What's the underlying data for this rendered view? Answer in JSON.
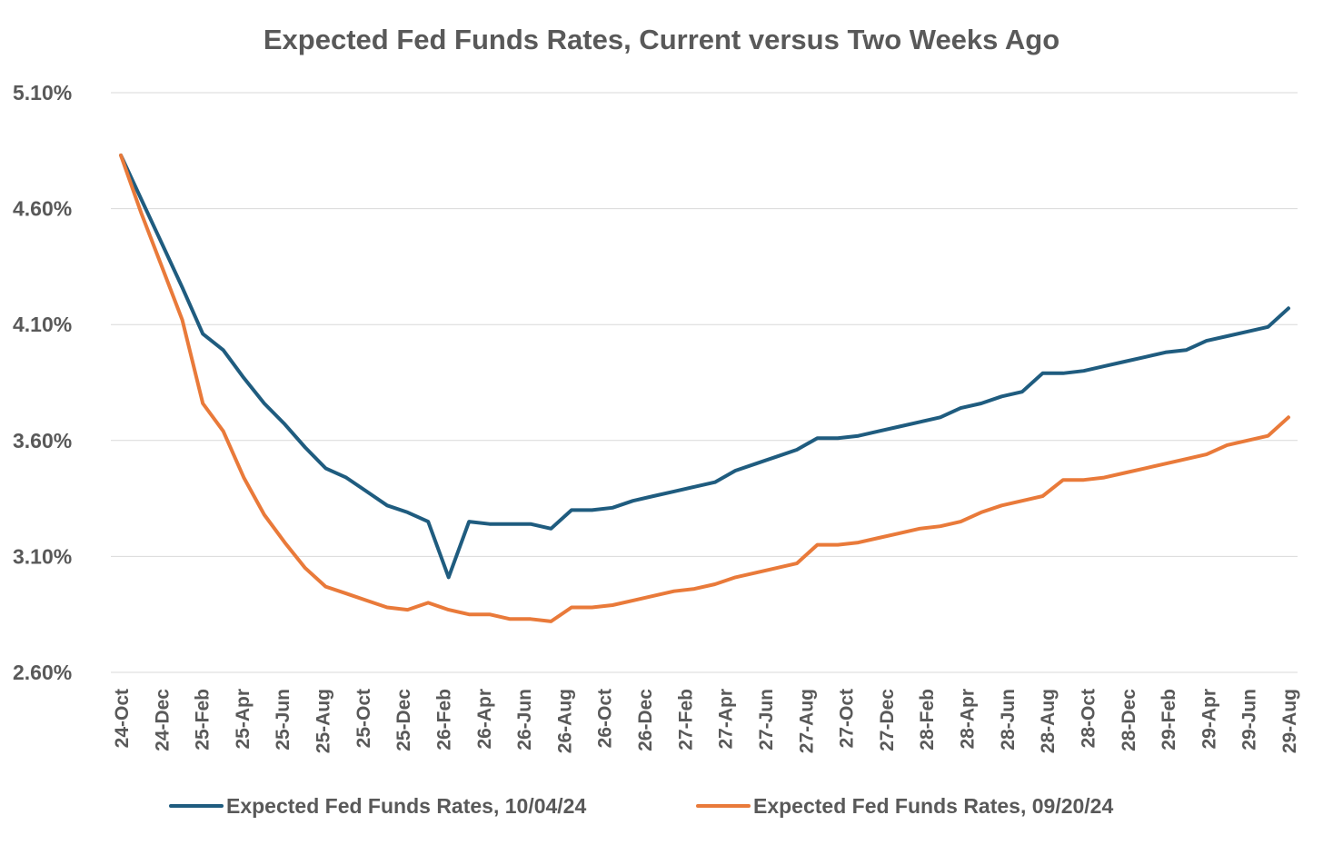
{
  "chart_data": {
    "type": "line",
    "title": "Expected Fed Funds Rates, Current versus Two Weeks Ago",
    "xlabel": "",
    "ylabel": "",
    "ylim": [
      2.6,
      5.1
    ],
    "y_ticks": [
      "2.60%",
      "3.10%",
      "3.60%",
      "4.10%",
      "4.60%",
      "5.10%"
    ],
    "y_tick_values": [
      2.6,
      3.1,
      3.6,
      4.1,
      4.6,
      5.1
    ],
    "x_tick_labels": [
      "24-Oct",
      "24-Dec",
      "25-Feb",
      "25-Apr",
      "25-Jun",
      "25-Aug",
      "25-Oct",
      "25-Dec",
      "26-Feb",
      "26-Apr",
      "26-Jun",
      "26-Aug",
      "26-Oct",
      "26-Dec",
      "27-Feb",
      "27-Apr",
      "27-Jun",
      "27-Aug",
      "27-Oct",
      "27-Dec",
      "28-Feb",
      "28-Apr",
      "28-Jun",
      "28-Aug",
      "28-Oct",
      "28-Dec",
      "29-Feb",
      "29-Apr",
      "29-Jun",
      "29-Aug"
    ],
    "grid": true,
    "legend_position": "bottom",
    "series": [
      {
        "name": "Expected Fed Funds Rates, 10/04/24",
        "color": "#1F5C7F",
        "values": [
          4.83,
          4.64,
          4.45,
          4.26,
          4.06,
          3.99,
          3.87,
          3.76,
          3.67,
          3.57,
          3.48,
          3.44,
          3.38,
          3.32,
          3.29,
          3.25,
          3.01,
          3.25,
          3.24,
          3.24,
          3.24,
          3.22,
          3.3,
          3.3,
          3.31,
          3.34,
          3.36,
          3.38,
          3.4,
          3.42,
          3.47,
          3.5,
          3.53,
          3.56,
          3.61,
          3.61,
          3.62,
          3.64,
          3.66,
          3.68,
          3.7,
          3.74,
          3.76,
          3.79,
          3.81,
          3.89,
          3.89,
          3.9,
          3.92,
          3.94,
          3.96,
          3.98,
          3.99,
          4.03,
          4.05,
          4.07,
          4.09,
          4.17
        ]
      },
      {
        "name": "Expected Fed Funds Rates, 09/20/24",
        "color": "#E97A3A",
        "values": [
          4.83,
          4.58,
          4.35,
          4.12,
          3.76,
          3.64,
          3.44,
          3.28,
          3.16,
          3.05,
          2.97,
          2.94,
          2.91,
          2.88,
          2.87,
          2.9,
          2.87,
          2.85,
          2.85,
          2.83,
          2.83,
          2.82,
          2.88,
          2.88,
          2.89,
          2.91,
          2.93,
          2.95,
          2.96,
          2.98,
          3.01,
          3.03,
          3.05,
          3.07,
          3.15,
          3.15,
          3.16,
          3.18,
          3.2,
          3.22,
          3.23,
          3.25,
          3.29,
          3.32,
          3.34,
          3.36,
          3.43,
          3.43,
          3.44,
          3.46,
          3.48,
          3.5,
          3.52,
          3.54,
          3.58,
          3.6,
          3.62,
          3.7
        ]
      }
    ]
  }
}
